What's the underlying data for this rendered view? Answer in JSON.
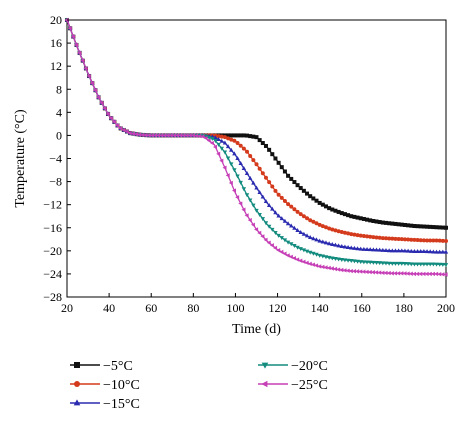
{
  "chart_data": {
    "type": "line",
    "xlabel": "Time (d)",
    "ylabel": "Temperature (°C)",
    "xlim": [
      20,
      200
    ],
    "ylim": [
      -28,
      20
    ],
    "xticks": [
      20,
      40,
      60,
      80,
      100,
      120,
      140,
      160,
      180,
      200
    ],
    "yticks": [
      20,
      16,
      12,
      8,
      4,
      0,
      -4,
      -8,
      -12,
      -16,
      -20,
      -24,
      -28
    ],
    "ytick_labels": [
      "20",
      "16",
      "12",
      "8",
      "4",
      "0",
      "−4",
      "−8",
      "−12",
      "−16",
      "−20",
      "−24",
      "−28"
    ],
    "grid": false,
    "legend_position": "below",
    "x": [
      20,
      25,
      30,
      35,
      40,
      45,
      50,
      55,
      60,
      65,
      70,
      75,
      80,
      85,
      90,
      95,
      100,
      105,
      110,
      115,
      120,
      125,
      130,
      135,
      140,
      145,
      150,
      155,
      160,
      165,
      170,
      175,
      180,
      185,
      190,
      195,
      200
    ],
    "series": [
      {
        "name": "−5°C",
        "marker": "square",
        "color": "#111111",
        "values": [
          20,
          15.2,
          10.7,
          6.6,
          3.4,
          1.3,
          0.4,
          0.1,
          0,
          0,
          0,
          0,
          0,
          0,
          0,
          0,
          0,
          0,
          -0.3,
          -2,
          -4.5,
          -7,
          -8.8,
          -10.4,
          -11.7,
          -12.7,
          -13.4,
          -14,
          -14.4,
          -14.8,
          -15.1,
          -15.3,
          -15.5,
          -15.7,
          -15.8,
          -15.9,
          -16
        ]
      },
      {
        "name": "−10°C",
        "marker": "circle",
        "color": "#d43a1c",
        "values": [
          20,
          15.2,
          10.7,
          6.6,
          3.4,
          1.3,
          0.4,
          0.1,
          0,
          0,
          0,
          0,
          0,
          0,
          0,
          -0.3,
          -1,
          -2.6,
          -5,
          -7.6,
          -10.1,
          -11.9,
          -13.4,
          -14.6,
          -15.5,
          -16.2,
          -16.7,
          -17.1,
          -17.4,
          -17.6,
          -17.8,
          -17.9,
          -18,
          -18.1,
          -18.2,
          -18.2,
          -18.3
        ]
      },
      {
        "name": "−15°C",
        "marker": "triangle-up",
        "color": "#2b2bb0",
        "values": [
          20,
          15.2,
          10.7,
          6.6,
          3.4,
          1.3,
          0.4,
          0.1,
          0,
          0,
          0,
          0,
          0,
          0,
          -0.3,
          -1.3,
          -3.4,
          -6.3,
          -9.1,
          -11.7,
          -13.8,
          -15.3,
          -16.6,
          -17.6,
          -18.3,
          -18.8,
          -19.2,
          -19.5,
          -19.7,
          -19.8,
          -19.9,
          -20,
          -20,
          -20.1,
          -20.1,
          -20.2,
          -20.2
        ]
      },
      {
        "name": "−20°C",
        "marker": "triangle-down",
        "color": "#138b7e",
        "values": [
          20,
          15.2,
          10.7,
          6.6,
          3.4,
          1.3,
          0.4,
          0.1,
          0,
          0,
          0,
          0,
          0,
          0,
          -0.7,
          -2.9,
          -6.3,
          -10,
          -13,
          -15.4,
          -17.2,
          -18.5,
          -19.5,
          -20.2,
          -20.8,
          -21.2,
          -21.5,
          -21.7,
          -21.9,
          -22,
          -22.1,
          -22.2,
          -22.2,
          -22.3,
          -22.3,
          -22.3,
          -22.4
        ]
      },
      {
        "name": "−25°C",
        "marker": "triangle-left",
        "color": "#c63fb6",
        "values": [
          20,
          15.2,
          10.7,
          6.6,
          3.4,
          1.3,
          0.4,
          0.1,
          0,
          0,
          0,
          0,
          0,
          -0.2,
          -1.6,
          -5.6,
          -10,
          -13.6,
          -16.3,
          -18.3,
          -19.8,
          -20.8,
          -21.6,
          -22.2,
          -22.7,
          -23,
          -23.3,
          -23.5,
          -23.6,
          -23.7,
          -23.8,
          -23.9,
          -23.9,
          -24,
          -24,
          -24,
          -24.1
        ]
      }
    ]
  }
}
